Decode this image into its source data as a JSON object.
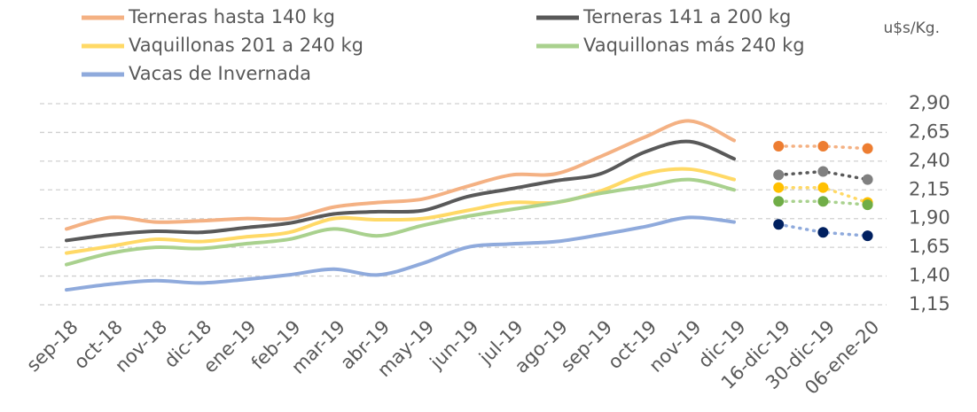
{
  "chart_data": {
    "type": "line",
    "unit_label": "u$s/Kg.",
    "categories": [
      "sep-18",
      "oct-18",
      "nov-18",
      "dic-18",
      "ene-19",
      "feb-19",
      "mar-19",
      "abr-19",
      "may-19",
      "jun-19",
      "jul-19",
      "ago-19",
      "sep-19",
      "oct-19",
      "nov-19",
      "dic-19"
    ],
    "weekly_categories": [
      "16-dic-19",
      "30-dic-19",
      "06-ene-20"
    ],
    "ylim": [
      1.15,
      2.9
    ],
    "yticks": [
      {
        "value": 1.15,
        "label": "1,15"
      },
      {
        "value": 1.4,
        "label": "1,40"
      },
      {
        "value": 1.65,
        "label": "1,65"
      },
      {
        "value": 1.9,
        "label": "1,90"
      },
      {
        "value": 2.15,
        "label": "2,15"
      },
      {
        "value": 2.4,
        "label": "2,40"
      },
      {
        "value": 2.65,
        "label": "2,65"
      },
      {
        "value": 2.9,
        "label": "2,90"
      }
    ],
    "grid": true,
    "series": [
      {
        "name": "Terneras hasta 140 kg",
        "color": "#f4b183",
        "dot_color": "#ed7d31",
        "values": [
          1.81,
          1.91,
          1.87,
          1.88,
          1.9,
          1.9,
          2.0,
          2.04,
          2.07,
          2.18,
          2.28,
          2.29,
          2.44,
          2.61,
          2.75,
          2.58
        ],
        "weekly_values": [
          2.53,
          2.53,
          2.51
        ]
      },
      {
        "name": "Terneras 141 a 200 kg",
        "color": "#595959",
        "dot_color": "#808080",
        "values": [
          1.71,
          1.76,
          1.79,
          1.78,
          1.82,
          1.86,
          1.94,
          1.96,
          1.97,
          2.09,
          2.16,
          2.23,
          2.29,
          2.48,
          2.57,
          2.42
        ],
        "weekly_values": [
          2.28,
          2.31,
          2.24
        ]
      },
      {
        "name": "Vaquillonas 201 a 240 kg",
        "color": "#ffd966",
        "dot_color": "#ffc000",
        "values": [
          1.6,
          1.66,
          1.72,
          1.7,
          1.74,
          1.78,
          1.9,
          1.89,
          1.9,
          1.97,
          2.04,
          2.04,
          2.14,
          2.29,
          2.33,
          2.24
        ],
        "weekly_values": [
          2.17,
          2.17,
          2.04
        ]
      },
      {
        "name": "Vaquillonas más 240 kg",
        "color": "#a9d18e",
        "dot_color": "#70ad47",
        "values": [
          1.5,
          1.6,
          1.65,
          1.64,
          1.68,
          1.72,
          1.81,
          1.75,
          1.84,
          1.92,
          1.98,
          2.04,
          2.12,
          2.18,
          2.24,
          2.15
        ],
        "weekly_values": [
          2.05,
          2.05,
          2.02
        ]
      },
      {
        "name": "Vacas de Invernada",
        "color": "#8faadc",
        "dot_color": "#002060",
        "values": [
          1.28,
          1.33,
          1.36,
          1.34,
          1.37,
          1.41,
          1.46,
          1.41,
          1.51,
          1.65,
          1.68,
          1.7,
          1.76,
          1.83,
          1.91,
          1.87
        ],
        "weekly_values": [
          1.85,
          1.78,
          1.75
        ]
      }
    ]
  }
}
